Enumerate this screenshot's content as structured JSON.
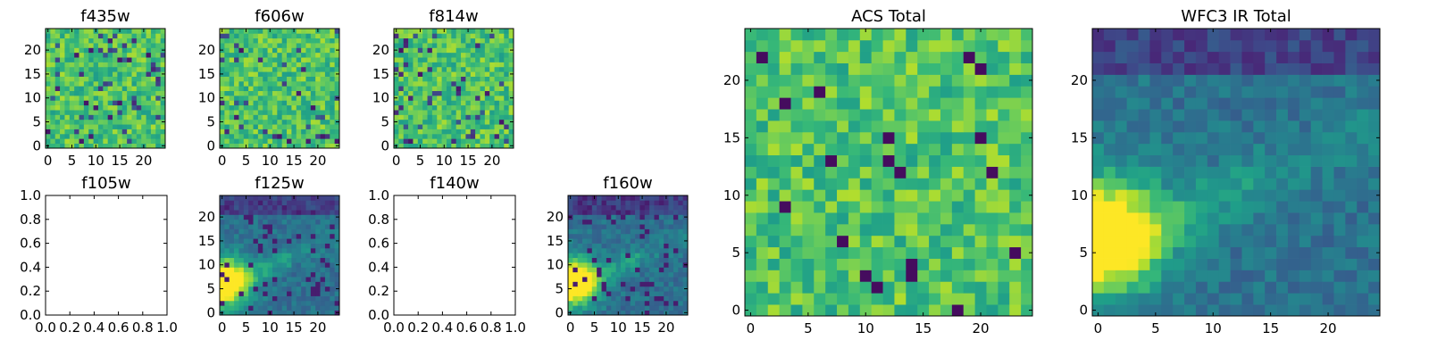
{
  "chart_data": [
    {
      "type": "heatmap",
      "title": "f435w",
      "empty": false,
      "kind": "optical",
      "xticks": [
        "0",
        "5",
        "10",
        "15",
        "20"
      ],
      "yticks": [
        "0",
        "5",
        "10",
        "15",
        "20"
      ],
      "xlim": [
        -0.5,
        24.5
      ],
      "ylim": [
        -0.5,
        24.5
      ],
      "grid": false,
      "colormap": "viridis",
      "seed": 11
    },
    {
      "type": "heatmap",
      "title": "f606w",
      "empty": false,
      "kind": "optical",
      "xticks": [
        "0",
        "5",
        "10",
        "15",
        "20"
      ],
      "yticks": [
        "0",
        "5",
        "10",
        "15",
        "20"
      ],
      "xlim": [
        -0.5,
        24.5
      ],
      "ylim": [
        -0.5,
        24.5
      ],
      "grid": false,
      "colormap": "viridis",
      "seed": 23
    },
    {
      "type": "heatmap",
      "title": "f814w",
      "empty": false,
      "kind": "optical",
      "xticks": [
        "0",
        "5",
        "10",
        "15",
        "20"
      ],
      "yticks": [
        "0",
        "5",
        "10",
        "15",
        "20"
      ],
      "xlim": [
        -0.5,
        24.5
      ],
      "ylim": [
        -0.5,
        24.5
      ],
      "grid": false,
      "colormap": "viridis",
      "seed": 37
    },
    {
      "type": "heatmap",
      "title": "f105w",
      "empty": true,
      "xticks": [
        "0.0",
        "0.2",
        "0.4",
        "0.6",
        "0.8",
        "1.0"
      ],
      "yticks": [
        "0.0",
        "0.2",
        "0.4",
        "0.6",
        "0.8",
        "1.0"
      ],
      "xlim": [
        0,
        1
      ],
      "ylim": [
        0,
        1
      ],
      "grid": false
    },
    {
      "type": "heatmap",
      "title": "f125w",
      "empty": false,
      "kind": "ir",
      "xticks": [
        "0",
        "5",
        "10",
        "15",
        "20"
      ],
      "yticks": [
        "0",
        "5",
        "10",
        "15",
        "20"
      ],
      "xlim": [
        -0.5,
        24.5
      ],
      "ylim": [
        -0.5,
        24.5
      ],
      "grid": false,
      "colormap": "viridis",
      "seed": 51
    },
    {
      "type": "heatmap",
      "title": "f140w",
      "empty": true,
      "xticks": [
        "0.0",
        "0.2",
        "0.4",
        "0.6",
        "0.8",
        "1.0"
      ],
      "yticks": [
        "0.0",
        "0.2",
        "0.4",
        "0.6",
        "0.8",
        "1.0"
      ],
      "xlim": [
        0,
        1
      ],
      "ylim": [
        0,
        1
      ],
      "grid": false
    },
    {
      "type": "heatmap",
      "title": "f160w",
      "empty": false,
      "kind": "ir",
      "xticks": [
        "0",
        "5",
        "10",
        "15",
        "20"
      ],
      "yticks": [
        "0",
        "5",
        "10",
        "15",
        "20"
      ],
      "xlim": [
        -0.5,
        24.5
      ],
      "ylim": [
        -0.5,
        24.5
      ],
      "grid": false,
      "colormap": "viridis",
      "seed": 67
    },
    {
      "type": "heatmap",
      "title": "ACS Total",
      "empty": false,
      "kind": "optical-total",
      "xticks": [
        "0",
        "5",
        "10",
        "15",
        "20"
      ],
      "yticks": [
        "0",
        "5",
        "10",
        "15",
        "20"
      ],
      "xlim": [
        -0.5,
        24.5
      ],
      "ylim": [
        -0.5,
        24.5
      ],
      "grid": false,
      "colormap": "viridis",
      "seed": 79
    },
    {
      "type": "heatmap",
      "title": "WFC3 IR Total",
      "empty": false,
      "kind": "ir-total",
      "xticks": [
        "0",
        "5",
        "10",
        "15",
        "20"
      ],
      "yticks": [
        "0",
        "5",
        "10",
        "15",
        "20"
      ],
      "xlim": [
        -0.5,
        24.5
      ],
      "ylim": [
        -0.5,
        24.5
      ],
      "grid": false,
      "colormap": "viridis",
      "seed": 97
    }
  ]
}
